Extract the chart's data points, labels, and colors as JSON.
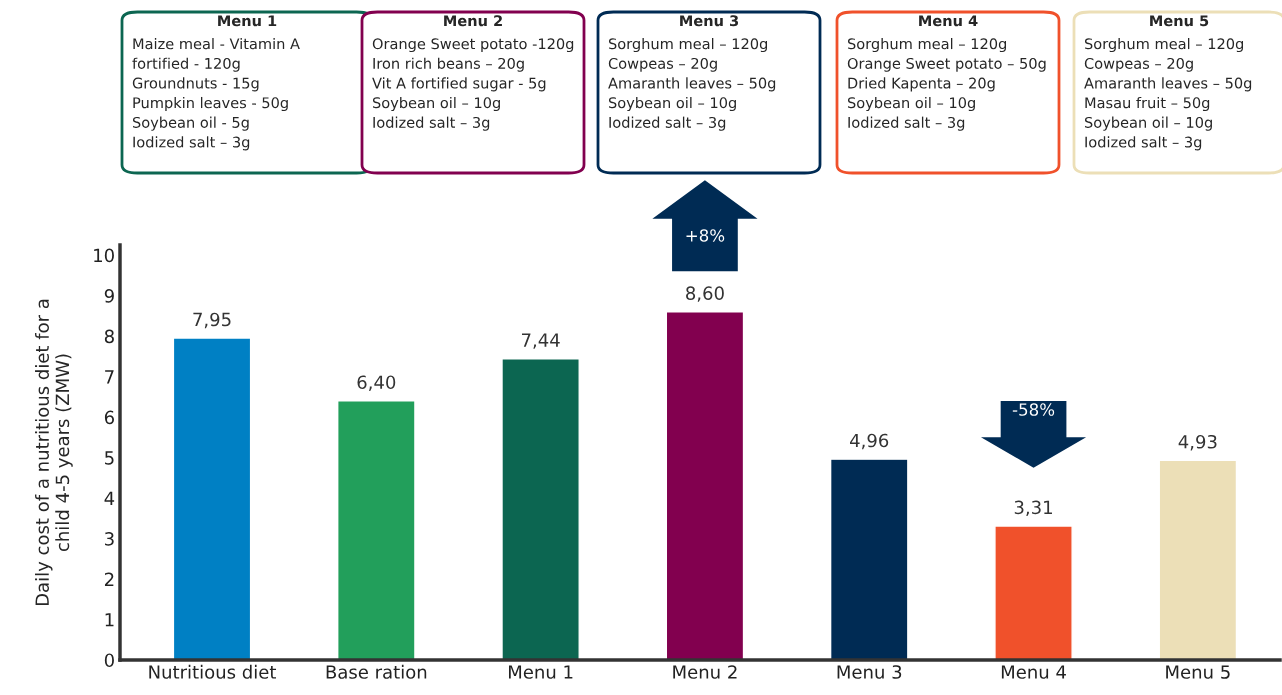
{
  "chart_data": {
    "type": "bar",
    "ylabel": "Daily cost of a nutritious diet for a\nchild 4-5 years (ZMW)",
    "categories": [
      "Nutritious diet",
      "Base ration",
      "Menu 1",
      "Menu 2",
      "Menu 3",
      "Menu 4",
      "Menu 5"
    ],
    "values": [
      7.95,
      6.4,
      7.44,
      8.6,
      4.96,
      3.31,
      4.93
    ],
    "value_labels": [
      "7,95",
      "6,40",
      "7,44",
      "8,60",
      "4,96",
      "3,31",
      "4,93"
    ],
    "colors": [
      "#0080c4",
      "#229f5b",
      "#0c6651",
      "#82004f",
      "#002b54",
      "#f0512b",
      "#ecdfb7"
    ],
    "ylim": [
      0,
      10.25
    ],
    "yticks": [
      0,
      1,
      2,
      3,
      4,
      5,
      6,
      7,
      8,
      9,
      10
    ],
    "grid": false,
    "legend": false,
    "annotations": [
      "Menu 1",
      "Maize meal - Vitamin A\nfortified - 120g\nGroundnuts - 15g\nPumpkin leaves - 50g\nSoybean oil - 5g\nIodized salt – 3g",
      "Menu 2",
      "Orange Sweet potato -120g\nIron rich beans – 20g\nVit A fortified sugar - 5g\nSoybean oil – 10g\nIodized salt – 3g",
      "Menu 3",
      "Sorghum meal – 120g\nCowpeas – 20g\nAmaranth leaves – 50g\nSoybean oil – 10g\nIodized salt – 3g",
      "Menu 4",
      "Sorghum meal – 120g\nOrange Sweet potato – 50g\nDried Kapenta – 20g\nSoybean oil – 10g\nIodized salt – 3g",
      "Menu 5",
      "Sorghum meal – 120g\nCowpeas – 20g\nAmaranth leaves – 50g\nMasau fruit – 50g\nSoybean oil – 10g\nIodized salt – 3g",
      "+8%",
      "-58%"
    ]
  }
}
